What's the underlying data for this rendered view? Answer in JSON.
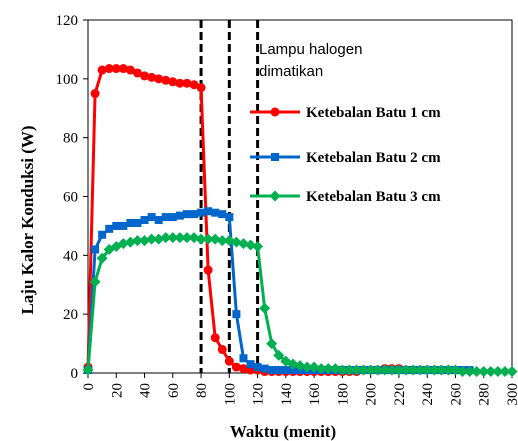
{
  "chart_data": {
    "type": "line",
    "xlabel": "Waktu (menit)",
    "ylabel": "Laju Kalor Konduksi (W)",
    "xlim": [
      0,
      300
    ],
    "ylim": [
      0,
      120
    ],
    "xticks": [
      0,
      20,
      40,
      60,
      80,
      100,
      120,
      140,
      160,
      180,
      200,
      220,
      240,
      260,
      280,
      300
    ],
    "yticks": [
      0,
      20,
      40,
      60,
      80,
      100,
      120
    ],
    "grid": false,
    "legend_position": "right",
    "annotation": {
      "lines": [
        "Lampu halogen",
        "dimatikan"
      ]
    },
    "vlines": [
      80,
      100,
      120
    ],
    "series": [
      {
        "name": "Ketebalan Batu 1 cm",
        "color": "#ff0000",
        "marker": "circle",
        "x": [
          0,
          5,
          10,
          15,
          20,
          25,
          30,
          35,
          40,
          45,
          50,
          55,
          60,
          65,
          70,
          75,
          80,
          85,
          90,
          95,
          100,
          105,
          110,
          115,
          120,
          125,
          130,
          135,
          140,
          145,
          150,
          155,
          160,
          165,
          170,
          175,
          180,
          185,
          190,
          195,
          200,
          205,
          210,
          215,
          220,
          225
        ],
        "y": [
          2,
          95,
          103,
          103.5,
          103.5,
          103.5,
          103,
          102,
          101,
          100.5,
          100,
          99.5,
          99,
          98.5,
          98.5,
          98,
          97,
          35,
          12,
          8,
          4,
          2,
          1.5,
          1,
          1,
          0.5,
          0.5,
          0.5,
          0.5,
          0.5,
          0.5,
          0.5,
          0.5,
          0.5,
          0.5,
          0.5,
          0.5,
          0.5,
          0.5,
          1,
          1,
          1,
          1.5,
          1.5,
          1.5,
          1
        ]
      },
      {
        "name": "Ketebalan Batu 2 cm",
        "color": "#0066cc",
        "marker": "square",
        "x": [
          0,
          5,
          10,
          15,
          20,
          25,
          30,
          35,
          40,
          45,
          50,
          55,
          60,
          65,
          70,
          75,
          80,
          85,
          90,
          95,
          100,
          105,
          110,
          115,
          120,
          125,
          130,
          135,
          140,
          145,
          150,
          155,
          160,
          165,
          170,
          175,
          180,
          185,
          190,
          195,
          200,
          205,
          210,
          215,
          220,
          225,
          230,
          235,
          240,
          245,
          250,
          255,
          260,
          265,
          270
        ],
        "y": [
          1,
          42,
          47,
          49,
          50,
          50,
          51,
          51,
          52,
          53,
          52,
          53,
          53,
          53.5,
          54,
          54,
          54.5,
          55,
          54.5,
          54,
          53,
          20,
          5,
          3,
          2,
          1.5,
          1,
          1,
          1,
          1,
          1,
          1,
          1,
          1,
          1,
          1,
          1,
          1,
          1,
          1,
          1,
          1,
          1,
          1,
          1,
          1,
          1,
          1,
          1,
          1,
          1,
          1,
          1,
          1,
          1
        ]
      },
      {
        "name": "Ketebalan Batu 3 cm",
        "color": "#00b050",
        "marker": "diamond",
        "x": [
          0,
          5,
          10,
          15,
          20,
          25,
          30,
          35,
          40,
          45,
          50,
          55,
          60,
          65,
          70,
          75,
          80,
          85,
          90,
          95,
          100,
          105,
          110,
          115,
          120,
          125,
          130,
          135,
          140,
          145,
          150,
          155,
          160,
          165,
          170,
          175,
          180,
          185,
          190,
          195,
          200,
          205,
          210,
          215,
          220,
          225,
          230,
          235,
          240,
          245,
          250,
          255,
          260,
          265,
          270,
          275,
          280,
          285,
          290,
          295,
          300
        ],
        "y": [
          1,
          31,
          39,
          42,
          43,
          44,
          44.5,
          45,
          45,
          45.5,
          45.5,
          46,
          46,
          46,
          46,
          46,
          45.5,
          45.5,
          45.5,
          45,
          45,
          44.5,
          44,
          43.5,
          43,
          22,
          10,
          6,
          4,
          3,
          2.5,
          2,
          2,
          1.5,
          1.5,
          1.5,
          1,
          1,
          1,
          1,
          1,
          1,
          1,
          1,
          1,
          1,
          1,
          1,
          1,
          1,
          1,
          1,
          1,
          0.5,
          0.5,
          0.5,
          0.5,
          0.5,
          0.5,
          0.5,
          0.5
        ]
      }
    ]
  }
}
